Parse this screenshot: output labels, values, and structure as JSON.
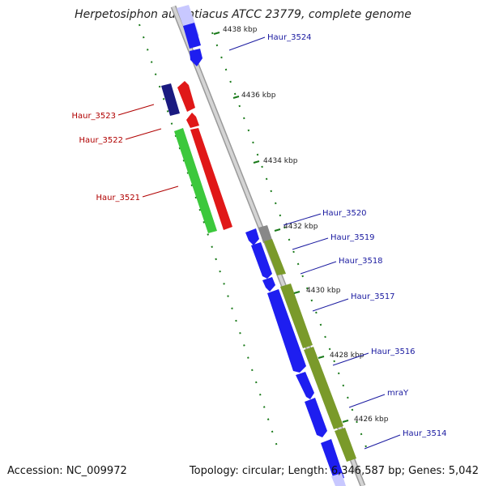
{
  "title": "Herpetosiphon aurantiacus ATCC 23779, complete genome",
  "accession_text": "Accession: NC_009972",
  "summary_text": "Topology: circular; Length: 6,346,587 bp; Genes: 5,042",
  "colors": {
    "forward_gene": "#1e1ef0",
    "reverse_gene": "#e01818",
    "rrna_like": "#1a1a80",
    "green_gene": "#3cc83c",
    "olive_gene": "#7a9a2a",
    "grey_gene": "#888888",
    "label_forward": "#1a1aa0",
    "label_reverse": "#b00000",
    "tick": "#1a7a1a"
  },
  "scale_labels": [
    "4438 kbp",
    "4436 kbp",
    "4434 kbp",
    "4432 kbp",
    "4430 kbp",
    "4428 kbp",
    "4426 kbp"
  ],
  "gene_labels": [
    {
      "text": "Haur_3524",
      "strand": "forward"
    },
    {
      "text": "Haur_3523",
      "strand": "reverse"
    },
    {
      "text": "Haur_3522",
      "strand": "reverse"
    },
    {
      "text": "Haur_3521",
      "strand": "reverse"
    },
    {
      "text": "Haur_3520",
      "strand": "forward"
    },
    {
      "text": "Haur_3519",
      "strand": "forward"
    },
    {
      "text": "Haur_3518",
      "strand": "forward"
    },
    {
      "text": "Haur_3517",
      "strand": "forward"
    },
    {
      "text": "Haur_3516",
      "strand": "forward"
    },
    {
      "text": "mraY",
      "strand": "forward"
    },
    {
      "text": "Haur_3514",
      "strand": "forward"
    }
  ]
}
